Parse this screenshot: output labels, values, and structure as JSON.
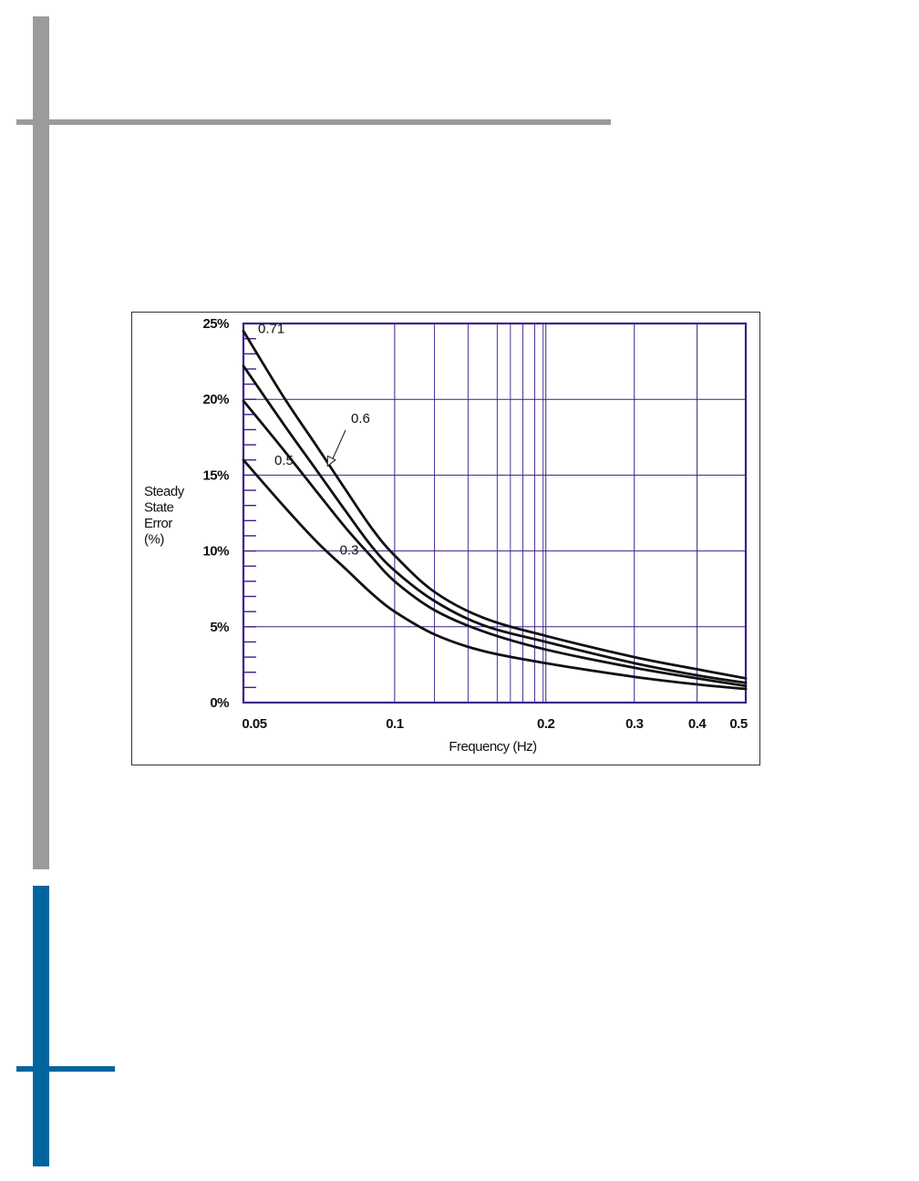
{
  "colors": {
    "gray_bar": "#9b9b9b",
    "blue_bar": "#00659e",
    "grid": "#3d1f8c",
    "curve": "#111111"
  },
  "chart_data": {
    "type": "line",
    "title": "",
    "xlabel": "Frequency (Hz)",
    "ylabel_lines": [
      "Steady",
      "State",
      "Error",
      "(%)"
    ],
    "x_scale": "log",
    "xlim": [
      0.05,
      0.5
    ],
    "ylim": [
      0,
      25
    ],
    "x_ticks": [
      {
        "value": 0.05,
        "label": "0.05"
      },
      {
        "value": 0.1,
        "label": "0.1"
      },
      {
        "value": 0.2,
        "label": "0.2"
      },
      {
        "value": 0.3,
        "label": "0.3"
      },
      {
        "value": 0.4,
        "label": "0.4"
      },
      {
        "value": 0.5,
        "label": "0.5"
      }
    ],
    "x_minor_gridlines": [
      0.12,
      0.14,
      0.16,
      0.17,
      0.18,
      0.19
    ],
    "y_ticks": [
      {
        "value": 0,
        "label": "0%"
      },
      {
        "value": 5,
        "label": "5%"
      },
      {
        "value": 10,
        "label": "10%"
      },
      {
        "value": 15,
        "label": "15%"
      },
      {
        "value": 20,
        "label": "20%"
      },
      {
        "value": 25,
        "label": "25%"
      }
    ],
    "y_minor_step": 1,
    "grid": true,
    "series": [
      {
        "name": "0.71",
        "x": [
          0.05,
          0.06,
          0.07,
          0.08,
          0.09,
          0.1,
          0.12,
          0.15,
          0.2,
          0.3,
          0.4,
          0.5
        ],
        "y": [
          24.5,
          20.2,
          16.9,
          14.0,
          11.5,
          9.7,
          7.3,
          5.6,
          4.4,
          3.0,
          2.2,
          1.6
        ]
      },
      {
        "name": "0.6",
        "x": [
          0.05,
          0.06,
          0.07,
          0.08,
          0.09,
          0.1,
          0.12,
          0.15,
          0.2,
          0.3,
          0.4,
          0.5
        ],
        "y": [
          22.2,
          18.4,
          15.3,
          12.6,
          10.3,
          8.7,
          6.7,
          5.1,
          4.0,
          2.6,
          1.8,
          1.3
        ]
      },
      {
        "name": "0.5",
        "x": [
          0.05,
          0.06,
          0.07,
          0.08,
          0.09,
          0.1,
          0.12,
          0.15,
          0.2,
          0.3,
          0.4,
          0.5
        ],
        "y": [
          19.9,
          16.7,
          13.9,
          11.5,
          9.6,
          8.0,
          6.1,
          4.7,
          3.5,
          2.3,
          1.6,
          1.1
        ]
      },
      {
        "name": "0.3",
        "x": [
          0.05,
          0.06,
          0.07,
          0.08,
          0.09,
          0.1,
          0.12,
          0.15,
          0.2,
          0.3,
          0.4,
          0.5
        ],
        "y": [
          16.0,
          13.0,
          10.6,
          8.8,
          7.2,
          6.0,
          4.5,
          3.4,
          2.6,
          1.7,
          1.2,
          0.9
        ]
      }
    ],
    "annotations": [
      {
        "text": "0.71",
        "series": "0.71"
      },
      {
        "text": "0.6",
        "series": "0.6",
        "arrow": true
      },
      {
        "text": "0.5",
        "series": "0.5"
      },
      {
        "text": "0.3",
        "series": "0.3"
      }
    ]
  }
}
